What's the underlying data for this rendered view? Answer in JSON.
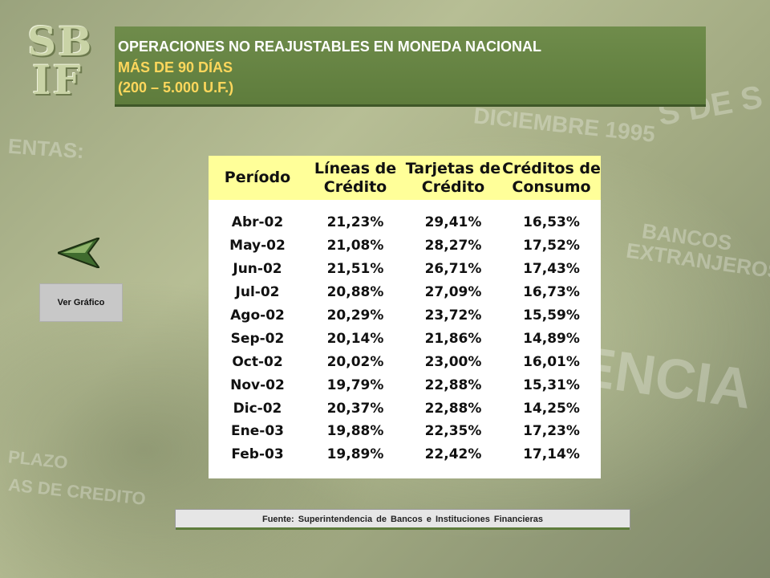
{
  "logo": {
    "line1": "SB",
    "line2": "IF"
  },
  "header": {
    "title": "OPERACIONES NO REAJUSTABLES EN MONEDA NACIONAL",
    "subtitle1": "MÁS DE 90 DÍAS",
    "subtitle2": "(200 – 5.000 U.F.)"
  },
  "table": {
    "headers": [
      "Período",
      "Líneas de\nCrédito",
      "Tarjetas de\nCrédito",
      "Créditos de\nConsumo"
    ],
    "rows": [
      [
        "Abr-02",
        "21,23%",
        "29,41%",
        "16,53%"
      ],
      [
        "May-02",
        "21,08%",
        "28,27%",
        "17,52%"
      ],
      [
        "Jun-02",
        "21,51%",
        "26,71%",
        "17,43%"
      ],
      [
        "Jul-02",
        "20,88%",
        "27,09%",
        "16,73%"
      ],
      [
        "Ago-02",
        "20,29%",
        "23,72%",
        "15,59%"
      ],
      [
        "Sep-02",
        "20,14%",
        "21,86%",
        "14,89%"
      ],
      [
        "Oct-02",
        "20,02%",
        "23,00%",
        "16,01%"
      ],
      [
        "Nov-02",
        "19,79%",
        "22,88%",
        "15,31%"
      ],
      [
        "Dic-02",
        "20,37%",
        "22,88%",
        "14,25%"
      ],
      [
        "Ene-03",
        "19,88%",
        "22,35%",
        "17,23%"
      ],
      [
        "Feb-03",
        "19,89%",
        "22,42%",
        "17,14%"
      ]
    ]
  },
  "nav": {
    "ver_grafico_label": "Ver Gráfico",
    "back_icon": "back-arrow-icon"
  },
  "footer": {
    "source": "Fuente: Superintendencia de Bancos e Instituciones Financieras"
  },
  "colors": {
    "header_bg": "#5e7c3c",
    "header_title": "#ffffff",
    "header_sub": "#ffd75c",
    "table_header_bg": "#ffff99"
  }
}
